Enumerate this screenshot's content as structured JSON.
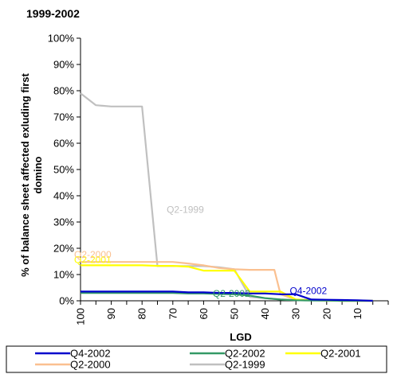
{
  "chart_data": {
    "type": "line",
    "title": "1999-2002",
    "xlabel": "LGD",
    "ylabel": "% of balance sheet affected exluding first domino",
    "xlim": [
      100,
      0
    ],
    "ylim": [
      0,
      100
    ],
    "x_ticks": [
      "100",
      "90",
      "80",
      "70",
      "60",
      "50",
      "40",
      "30",
      "20",
      "10"
    ],
    "y_ticks": [
      "0%",
      "10%",
      "20%",
      "30%",
      "40%",
      "50%",
      "60%",
      "70%",
      "80%",
      "90%",
      "100%"
    ],
    "grid": false,
    "legend_position": "bottom",
    "series": [
      {
        "name": "Q4-2002",
        "label": "Q4-2002",
        "color": "#0000cc",
        "x": [
          100,
          95,
          90,
          85,
          80,
          75,
          70,
          65,
          60,
          55,
          50,
          45,
          40,
          35,
          30,
          25,
          20,
          15,
          10,
          5
        ],
        "y": [
          3.5,
          3.5,
          3.5,
          3.5,
          3.5,
          3.5,
          3.5,
          3.2,
          3.2,
          3.0,
          3.0,
          2.8,
          2.8,
          2.5,
          2.5,
          0.5,
          0.4,
          0.3,
          0.2,
          0
        ]
      },
      {
        "name": "Q2-2002",
        "label": "Q2-2002",
        "color": "#339966",
        "x": [
          100,
          95,
          90,
          85,
          80,
          75,
          70,
          65,
          60,
          55,
          50,
          45,
          40,
          35,
          30,
          25,
          20,
          15,
          10,
          5
        ],
        "y": [
          3.0,
          3.0,
          3.0,
          3.0,
          3.0,
          3.0,
          3.0,
          2.8,
          2.8,
          2.6,
          2.5,
          2.0,
          1.0,
          0.5,
          0.2,
          0.1,
          0.1,
          0,
          0,
          0
        ]
      },
      {
        "name": "Q2-2001",
        "label": "Q2-2001",
        "color": "#ffff00",
        "x": [
          100,
          95,
          90,
          85,
          80,
          75,
          70,
          65,
          60,
          55,
          50,
          45,
          40,
          35,
          30,
          25,
          20,
          15,
          10,
          5
        ],
        "y": [
          13.5,
          13.5,
          13.5,
          13.5,
          13.5,
          13.3,
          13.3,
          13.0,
          11.5,
          11.5,
          11.5,
          3.5,
          3.5,
          3.5,
          0.5,
          0.2,
          0.1,
          0,
          0,
          0
        ]
      },
      {
        "name": "Q2-2000",
        "label": "Q2-2000",
        "color": "#fac090",
        "x": [
          100,
          95,
          90,
          85,
          80,
          75,
          70,
          65,
          60,
          55,
          50,
          45,
          40,
          37,
          35,
          30,
          25,
          20,
          15,
          10,
          5
        ],
        "y": [
          14.8,
          14.8,
          14.8,
          14.8,
          14.8,
          14.8,
          14.8,
          14.2,
          13.5,
          12.5,
          12.0,
          11.8,
          11.8,
          11.8,
          2.5,
          0.5,
          0.2,
          0.1,
          0,
          0,
          0
        ]
      },
      {
        "name": "Q2-1999",
        "label": "Q2-1999",
        "color": "#c0c0c0",
        "x": [
          100,
          95,
          90,
          85,
          80,
          75,
          70,
          65,
          60,
          55,
          50,
          45,
          40,
          35,
          30,
          25,
          20,
          15,
          10,
          5
        ],
        "y": [
          79,
          74.5,
          74,
          74,
          74,
          13.2,
          13.2,
          13.2,
          13.2,
          12.8,
          12.0,
          1.5,
          1.0,
          0.5,
          0.3,
          0.2,
          0.1,
          0,
          0,
          0
        ]
      }
    ]
  }
}
